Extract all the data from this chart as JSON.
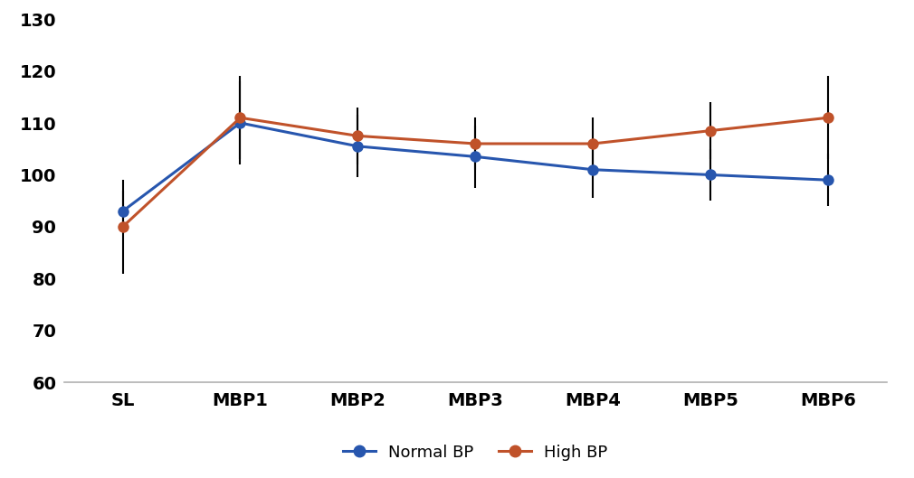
{
  "categories": [
    "SL",
    "MBP1",
    "MBP2",
    "MBP3",
    "MBP4",
    "MBP5",
    "MBP6"
  ],
  "normal_bp": [
    93,
    110,
    105.5,
    103.5,
    101,
    100,
    99
  ],
  "normal_bp_err": [
    4,
    8,
    6,
    6,
    5.5,
    5,
    5
  ],
  "high_bp": [
    90,
    111,
    107.5,
    106,
    106,
    108.5,
    111
  ],
  "high_bp_err": [
    9,
    8,
    5.5,
    5,
    5,
    5.5,
    8
  ],
  "normal_bp_color": "#2756AE",
  "high_bp_color": "#C0522A",
  "ylim": [
    60,
    130
  ],
  "yticks": [
    60,
    70,
    80,
    90,
    100,
    110,
    120,
    130
  ],
  "legend_normal": "Normal BP",
  "legend_high": "High BP",
  "background_color": "#ffffff",
  "marker_size": 9,
  "line_width": 2.2,
  "capsize": 5,
  "elinewidth": 1.5,
  "spine_color": "#b0b0b0",
  "tick_font_size": 14,
  "legend_font_size": 13
}
